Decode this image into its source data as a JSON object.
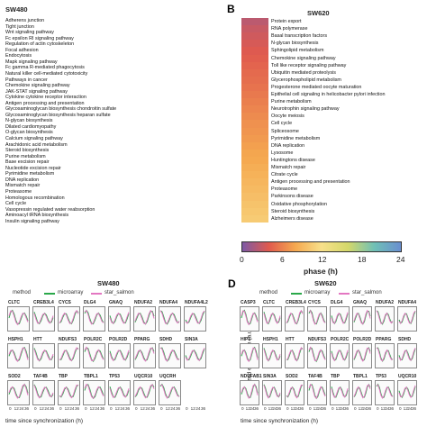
{
  "chart_data": [
    {
      "type": "heatmap",
      "title": "SW480",
      "panel_label": "",
      "labels": [
        "Adherens junction",
        "Tight junction",
        "Wnt signaling pathway",
        "Fc epsilon RI signaling pathway",
        "Regulation of actin cytoskeleton",
        "Focal adhesion",
        "Endocytosis",
        "Mapk signaling pathway",
        "Fc gamma R-mediated phagocytosis",
        "Natural killer cell-mediated cytotoxicity",
        "Pathways in cancer",
        "Chemokine signaling pathway",
        "JAK-STAT signaling pathway",
        "Cytokine cytokine receptor interaction",
        "Antigen processing and presentation",
        "Glycosaminoglycan biosynthesis chondroitin sulfate",
        "Glycosaminoglycan biosynthesis heparan sulfate",
        "N-glycan biosynthesis",
        "Dilated cardiomyopathy",
        "O-glycan biosynthesis",
        "Calcium signaling pathway",
        "Arachidonic acid metabolism",
        "Steroid biosynthesis",
        "Purine metabolism",
        "Base excision repair",
        "Nucleotide excision repair",
        "Pyrimidine metabolism",
        "DNA replication",
        "Mismatch repair",
        "Proteasome",
        "Homologous recombination",
        "Cell cycle",
        "Vasopressin regulated water reabsorption",
        "Aminoacyl tRNA biosynthesis",
        "Insulin signaling pathway"
      ]
    },
    {
      "type": "heatmap",
      "title": "SW620",
      "panel_label": "B",
      "labels": [
        "Protein export",
        "RNA polymerase",
        "Basal transcription factors",
        "N-glycan biosynthesis",
        "Sphingolipid metabolism",
        "Chemokine signaling pathway",
        "Toll like receptor signaling pathway",
        "Ubiquitin mediated proteolysis",
        "Glycerophospholipid metabolism",
        "Progesterone mediated oocyte maturation",
        "Epithelial cell signaling in helicobacter pylori infection",
        "Purine metabolism",
        "Neurotrophin signaling pathway",
        "Oocyte meiosis",
        "Cell cycle",
        "Spliceosome",
        "Pyrimidine metabolism",
        "DNA replication",
        "Lysosome",
        "Huntingtons disease",
        "Mismatch repair",
        "Citrate cycle",
        "Antigen processing and presentation",
        "Proteasome",
        "Parkinsons disease",
        "Oxidative phosphorylation",
        "Steroid biosynthesis",
        "Alzheimers disease"
      ],
      "phase_h": [
        2.5,
        3.0,
        3.3,
        3.6,
        3.9,
        4.2,
        4.5,
        4.8,
        5.0,
        5.3,
        5.6,
        5.9,
        6.2,
        6.5,
        6.8,
        7.0,
        7.3,
        7.6,
        7.9,
        8.1,
        8.4,
        8.7,
        9.0,
        9.3,
        9.6,
        9.9,
        10.2,
        10.5
      ]
    },
    {
      "type": "line",
      "title": "SW480",
      "legend_title": "method",
      "series": [
        {
          "name": "microarray",
          "color": "#2aa84a"
        },
        {
          "name": "star_salmon",
          "color": "#e377c2"
        }
      ],
      "genes": [
        "CLTC",
        "CREB3L4",
        "CYCS",
        "DLG4",
        "GNAQ",
        "NDUFA2",
        "NDUFA4",
        "NDUFA4L2",
        "HSPH1",
        "HTT",
        "NDUFS3",
        "POLR2C",
        "POLR2D",
        "PPARG",
        "SDHD",
        "SIN3A",
        "SOD2",
        "TAF4B",
        "TBP",
        "TBPL1",
        "TP53",
        "UQCR10",
        "UQCRH"
      ],
      "xlabel": "time since synchronization (h)",
      "xticks": [
        "0",
        "12",
        "24",
        "36"
      ]
    },
    {
      "type": "line",
      "title": "SW620",
      "panel_label": "D",
      "legend_title": "method",
      "series": [
        {
          "name": "microarray",
          "color": "#2aa84a"
        },
        {
          "name": "star_salmon",
          "color": "#e377c2"
        }
      ],
      "genes": [
        "CASP3",
        "CLTC",
        "CREB3L4",
        "CYCS",
        "DLG4",
        "GNAQ",
        "NDUFA2",
        "NDUFA4",
        "HIP1",
        "HSPH1",
        "HTT",
        "NDUFS3",
        "POLR2C",
        "POLR2D",
        "PPARG",
        "SDHD",
        "NDUFAB1",
        "SIN3A",
        "SOD2",
        "TAF4B",
        "TBP",
        "TBPL1",
        "TP53",
        "UQCR10"
      ],
      "xlabel": "time since synchronization (h)",
      "ylabel": "normalized expression (a.u.)",
      "xticks": [
        "0",
        "12",
        "24",
        "36"
      ]
    }
  ],
  "colorbar": {
    "title": "phase (h)",
    "ticks": [
      "0",
      "6",
      "12",
      "18",
      "24"
    ],
    "stops": [
      "#7d5aa6",
      "#e05a4e",
      "#f5a84f",
      "#f8e08a",
      "#d4d86a",
      "#6fc0b6",
      "#6a8fd0"
    ]
  }
}
